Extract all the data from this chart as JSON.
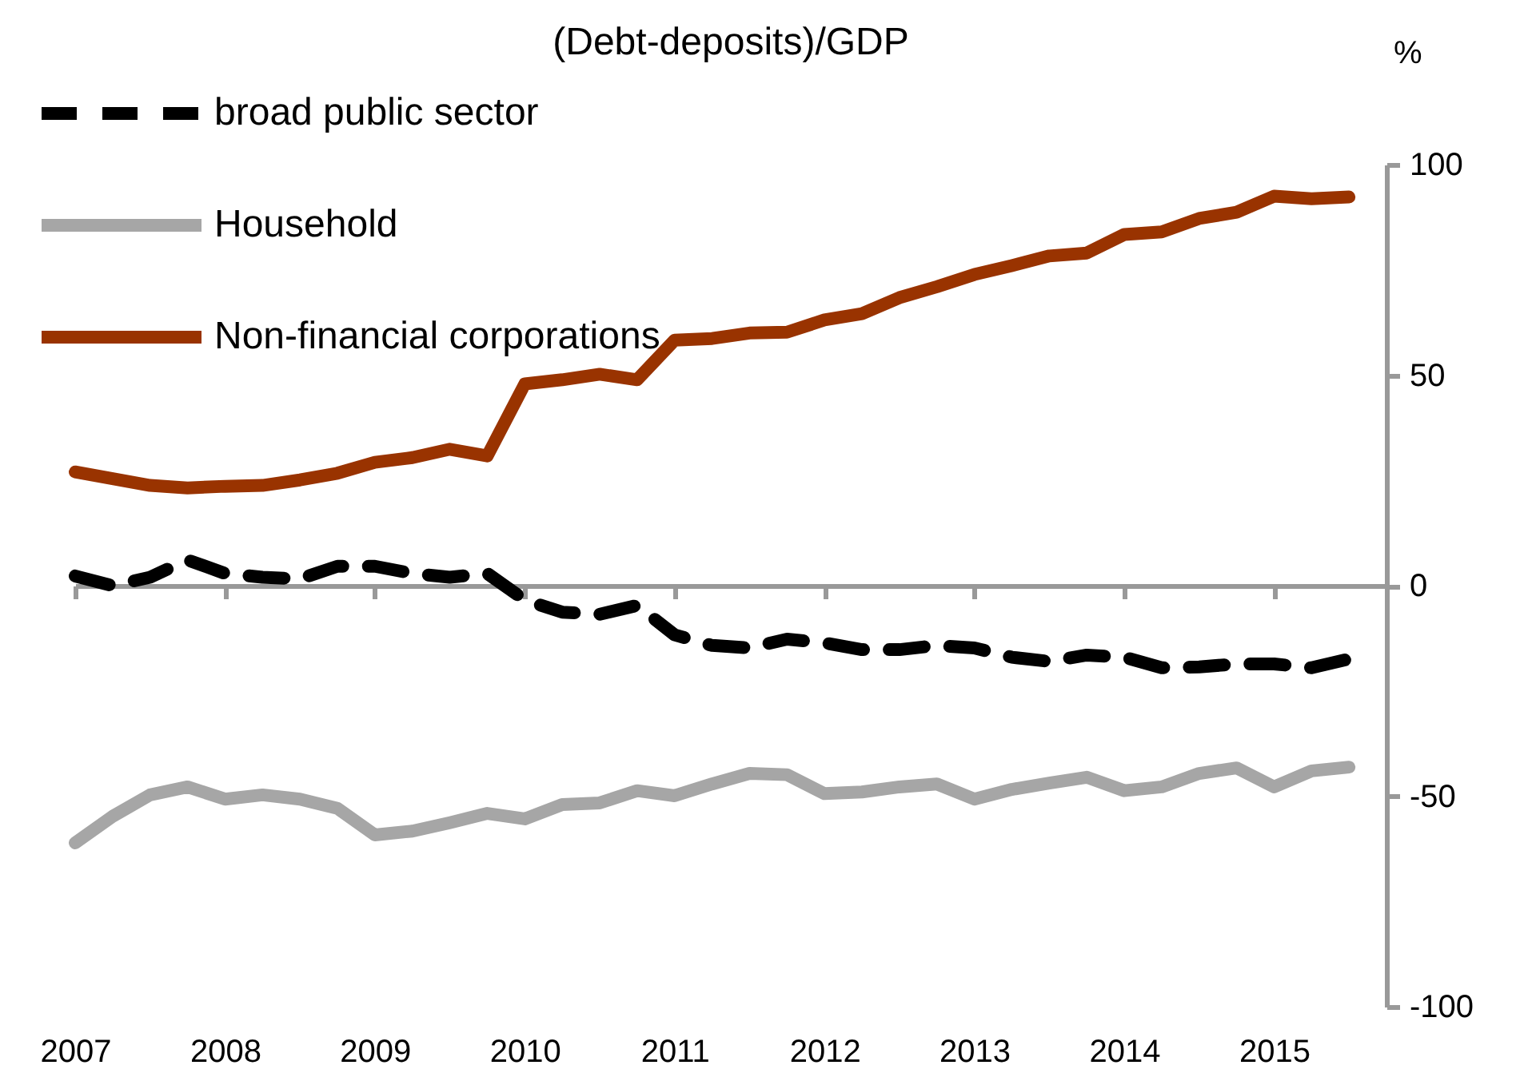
{
  "chart_data": {
    "type": "line",
    "title": "(Debt-deposits)/GDP",
    "ylabel": "%",
    "x": [
      2007,
      2007.25,
      2007.5,
      2007.75,
      2008,
      2008.25,
      2008.5,
      2008.75,
      2009,
      2009.25,
      2009.5,
      2009.75,
      2010,
      2010.25,
      2010.5,
      2010.75,
      2011,
      2011.25,
      2011.5,
      2011.75,
      2012,
      2012.25,
      2012.5,
      2012.75,
      2013,
      2013.25,
      2013.5,
      2013.75,
      2014,
      2014.25,
      2014.5,
      2014.75,
      2015,
      2015.25,
      2015.5
    ],
    "series": [
      {
        "name": "broad public sector",
        "color": "#000000",
        "line_style": "dashed",
        "values": [
          2.3,
          0,
          2,
          6.1,
          2.9,
          2,
          1.6,
          4.6,
          4.6,
          2.9,
          2,
          2.9,
          -3.4,
          -6.3,
          -6.8,
          -4.7,
          -11.7,
          -14.2,
          -14.8,
          -12.7,
          -13.6,
          -15.2,
          -15.2,
          -14.2,
          -14.8,
          -17,
          -18,
          -16.5,
          -17,
          -19.5,
          -19.3,
          -18.6,
          -18.6,
          -19.5,
          -17.4
        ]
      },
      {
        "name": "Household",
        "color": "#a6a6a6",
        "line_style": "solid",
        "values": [
          -61.1,
          -54.8,
          -49.7,
          -47.8,
          -50.7,
          -49.7,
          -50.7,
          -52.9,
          -59.2,
          -58.3,
          -56.3,
          -54.1,
          -55.4,
          -52,
          -51.6,
          -48.7,
          -49.9,
          -47.1,
          -44.6,
          -44.9,
          -49.4,
          -49,
          -47.8,
          -47.1,
          -50.7,
          -48.4,
          -46.9,
          -45.5,
          -48.7,
          -47.8,
          -44.6,
          -43.3,
          -47.8,
          -44,
          -43.1
        ]
      },
      {
        "name": "Non-financial corporations",
        "color": "#993300",
        "line_style": "solid",
        "values": [
          27,
          25.4,
          23.8,
          23.2,
          23.6,
          23.8,
          25.1,
          26.7,
          29.3,
          30.4,
          32.4,
          30.8,
          47.9,
          48.9,
          50.2,
          48.9,
          58.3,
          58.7,
          60,
          60.2,
          63.1,
          64.6,
          68.4,
          71,
          73.9,
          76,
          78.3,
          79,
          83.4,
          84,
          87.2,
          88.7,
          92.5,
          91.9,
          92.3
        ]
      }
    ],
    "xlim": [
      2007,
      2015.75
    ],
    "xticks": [
      2007,
      2008,
      2009,
      2010,
      2011,
      2012,
      2013,
      2014,
      2015
    ],
    "ylim": [
      -100,
      100
    ],
    "yticks": [
      -100,
      -50,
      0,
      50,
      100
    ],
    "legend": "top left"
  }
}
